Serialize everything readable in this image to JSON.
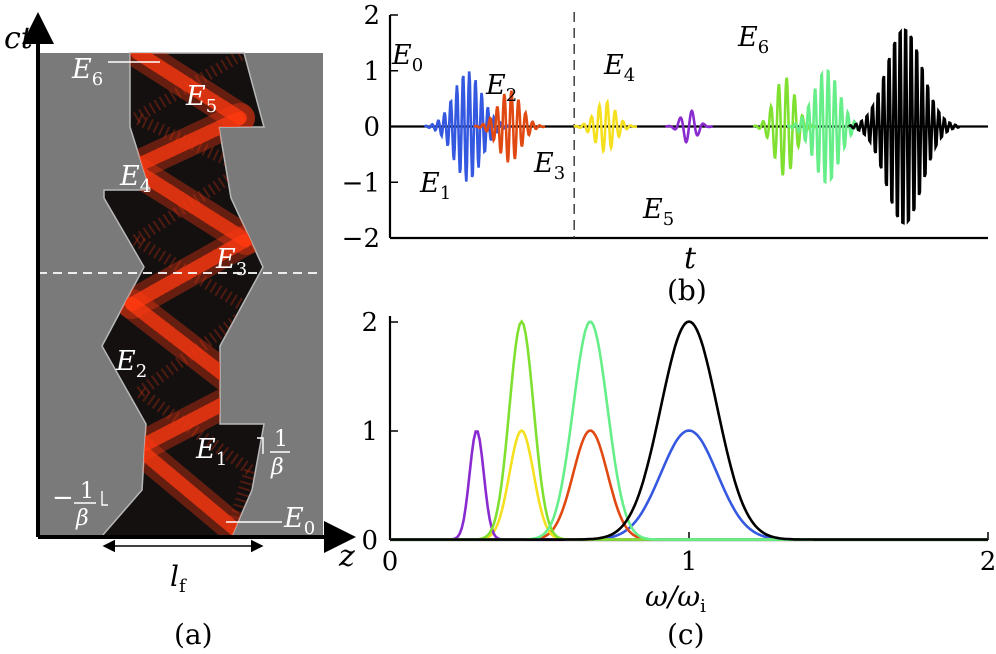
{
  "panel_a": {
    "label": "(a)",
    "y_axis_label": "ct",
    "x_axis_label": "z",
    "width_label_main": "l",
    "width_label_sub": "f",
    "slope_right": {
      "num": "1",
      "den": "β"
    },
    "slope_left": {
      "sign": "−",
      "num": "1",
      "den": "β"
    },
    "field_labels": [
      {
        "main": "E",
        "sub": "0"
      },
      {
        "main": "E",
        "sub": "1"
      },
      {
        "main": "E",
        "sub": "2"
      },
      {
        "main": "E",
        "sub": "3"
      },
      {
        "main": "E",
        "sub": "4"
      },
      {
        "main": "E",
        "sub": "5"
      },
      {
        "main": "E",
        "sub": "6"
      }
    ],
    "colors": {
      "background": "#7a7a7a",
      "medium": "#141010",
      "wave": "#ff3a10"
    }
  },
  "chart_data": [
    {
      "type": "line",
      "panel": "(b)",
      "xlabel": "t",
      "ylabel": "",
      "ylim": [
        -2,
        2
      ],
      "yticks": [
        -2,
        -1,
        0,
        1,
        2
      ],
      "ytick_labels": [
        "−2",
        "−1",
        "0",
        "1",
        "2"
      ],
      "xticks": [],
      "divider": "dashed vertical line between E3 and E4",
      "series": [
        {
          "name": "E0",
          "label_main": "E",
          "label_sub": "0",
          "color": "#3558e0",
          "center": 0.13,
          "amplitude": 1.0,
          "cycles": 7
        },
        {
          "name": "E1",
          "label_main": "E",
          "label_sub": "1",
          "color": "#e04a12",
          "center": 0.2,
          "amplitude": 0.65,
          "cycles": 5
        },
        {
          "name": "E2",
          "label_main": "E",
          "label_sub": "2",
          "color": "#f5e020",
          "center": 0.36,
          "amplitude": 0.45,
          "cycles": 4
        },
        {
          "name": "E3",
          "label_main": "E",
          "label_sub": "3",
          "color": "#8a2bd0",
          "center": 0.5,
          "amplitude": 0.3,
          "cycles": 2
        },
        {
          "name": "E4",
          "label_main": "E",
          "label_sub": "4",
          "color": "#7fe030",
          "center": 0.66,
          "amplitude": 0.9,
          "cycles": 4
        },
        {
          "name": "E5",
          "label_main": "E",
          "label_sub": "5",
          "color": "#66ee88",
          "center": 0.73,
          "amplitude": 1.05,
          "cycles": 6
        },
        {
          "name": "E6",
          "label_main": "E",
          "label_sub": "6",
          "color": "#000000",
          "center": 0.86,
          "amplitude": 2.0,
          "cycles": 10
        }
      ]
    },
    {
      "type": "line",
      "panel": "(c)",
      "xlabel_main": "ω/ω",
      "xlabel_sub": "i",
      "ylabel": "",
      "xlim": [
        0,
        2
      ],
      "ylim": [
        0,
        2
      ],
      "xticks": [
        0,
        1,
        2
      ],
      "yticks": [
        0,
        1,
        2
      ],
      "series": [
        {
          "name": "E0",
          "color": "#3558e0",
          "peak": 1.0,
          "amp": 1.0,
          "width": 0.14
        },
        {
          "name": "E1",
          "color": "#e04a12",
          "peak": 0.67,
          "amp": 1.0,
          "width": 0.085
        },
        {
          "name": "E2",
          "color": "#f5e020",
          "peak": 0.44,
          "amp": 1.0,
          "width": 0.06
        },
        {
          "name": "E3",
          "color": "#8a2bd0",
          "peak": 0.29,
          "amp": 1.0,
          "width": 0.035
        },
        {
          "name": "E4",
          "color": "#7fe030",
          "peak": 0.44,
          "amp": 2.0,
          "width": 0.06
        },
        {
          "name": "E5",
          "color": "#66ee88",
          "peak": 0.67,
          "amp": 2.0,
          "width": 0.085
        },
        {
          "name": "E6",
          "color": "#000000",
          "peak": 1.0,
          "amp": 2.0,
          "width": 0.14
        }
      ]
    }
  ]
}
